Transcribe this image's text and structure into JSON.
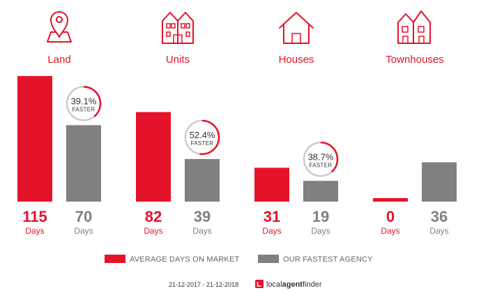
{
  "chart_data": {
    "type": "bar",
    "categories": [
      "Land",
      "Units",
      "Houses",
      "Townhouses"
    ],
    "series": [
      {
        "name": "AVERAGE DAYS ON MARKET",
        "values": [
          115,
          82,
          31,
          0
        ],
        "color": "#e5132a"
      },
      {
        "name": "OUR FASTEST AGENCY",
        "values": [
          70,
          39,
          19,
          36
        ],
        "color": "#808080"
      }
    ],
    "value_unit": "Days",
    "badges": [
      {
        "category_index": 0,
        "percent": "39.1%",
        "label": "FASTER",
        "fraction": 0.391
      },
      {
        "category_index": 1,
        "percent": "52.4%",
        "label": "FASTER",
        "fraction": 0.524
      },
      {
        "category_index": 2,
        "percent": "38.7%",
        "label": "FASTER",
        "fraction": 0.387
      }
    ],
    "icons": [
      "map-pin-icon",
      "apartment-icon",
      "house-icon",
      "townhouse-icon"
    ],
    "ylim": [
      0,
      115
    ],
    "grid": false,
    "legend_position": "bottom-center"
  },
  "footer": {
    "date_range": "21-12-2017 - 21-12-2018",
    "brand": {
      "part1": "local",
      "part2": "agent",
      "part3": "finder"
    }
  },
  "colors": {
    "accent": "#e5132a",
    "secondary": "#808080",
    "badge_ring": "#cccccc"
  }
}
